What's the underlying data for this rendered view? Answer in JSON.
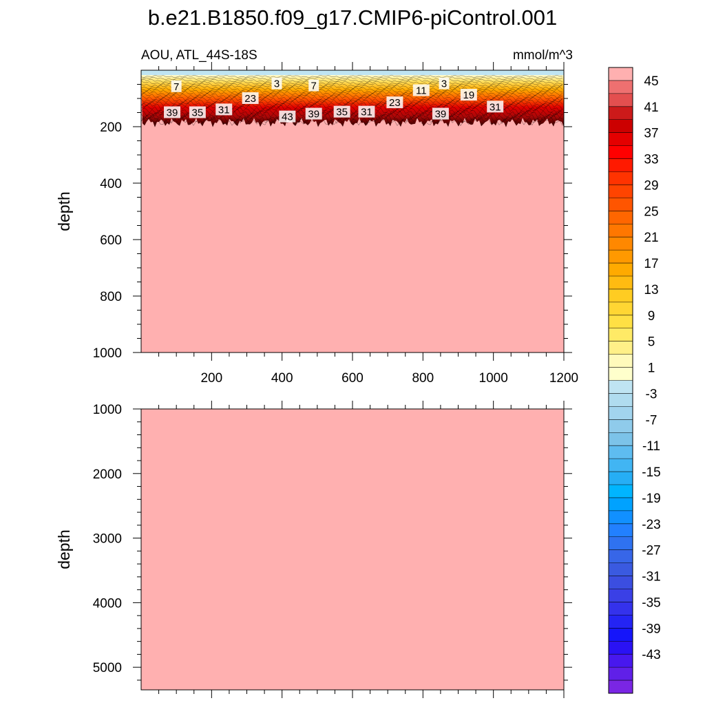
{
  "title": "b.e21.B1850.f09_g17.CMIP6-piControl.001",
  "chart_data": [
    {
      "type": "heatmap",
      "panel": "upper",
      "left_label": "AOU, ATL_44S-18S",
      "right_label": "mmol/m^3",
      "ylabel": "depth",
      "xlim": [
        0,
        1200
      ],
      "ylim": [
        1000,
        0
      ],
      "x_ticks": [
        "200",
        "400",
        "600",
        "800",
        "1000",
        "1200"
      ],
      "y_ticks": [
        "200",
        "400",
        "600",
        "800",
        "1000"
      ],
      "x_tick_values": [
        200,
        400,
        600,
        800,
        1000,
        1200
      ],
      "y_tick_values": [
        200,
        400,
        600,
        800,
        1000
      ],
      "fill_value": 45,
      "surface_layer": {
        "value": -3,
        "depth_bottom": 25
      },
      "gradient_band": {
        "depth_top": 25,
        "depth_bottom": 185
      },
      "contour_labels": [
        {
          "text": "7",
          "x": 100,
          "y": 58
        },
        {
          "text": "3",
          "x": 385,
          "y": 48
        },
        {
          "text": "7",
          "x": 490,
          "y": 55
        },
        {
          "text": "23",
          "x": 310,
          "y": 100
        },
        {
          "text": "39",
          "x": 88,
          "y": 150
        },
        {
          "text": "35",
          "x": 160,
          "y": 150
        },
        {
          "text": "31",
          "x": 235,
          "y": 140
        },
        {
          "text": "43",
          "x": 415,
          "y": 165
        },
        {
          "text": "39",
          "x": 490,
          "y": 155
        },
        {
          "text": "35",
          "x": 570,
          "y": 148
        },
        {
          "text": "31",
          "x": 640,
          "y": 148
        },
        {
          "text": "23",
          "x": 720,
          "y": 115
        },
        {
          "text": "11",
          "x": 795,
          "y": 72
        },
        {
          "text": "3",
          "x": 860,
          "y": 48
        },
        {
          "text": "19",
          "x": 930,
          "y": 88
        },
        {
          "text": "39",
          "x": 850,
          "y": 155
        },
        {
          "text": "31",
          "x": 1005,
          "y": 130
        }
      ]
    },
    {
      "type": "heatmap",
      "panel": "lower",
      "ylabel": "depth",
      "xlim": [
        0,
        1200
      ],
      "ylim": [
        5350,
        1000
      ],
      "y_ticks": [
        "1000",
        "2000",
        "3000",
        "4000",
        "5000"
      ],
      "y_tick_values": [
        1000,
        2000,
        3000,
        4000,
        5000
      ],
      "fill_value": 45
    }
  ],
  "colorbar": {
    "labels": [
      "45",
      "41",
      "37",
      "33",
      "29",
      "25",
      "21",
      "17",
      "13",
      "9",
      "5",
      "1",
      "-3",
      "-7",
      "-11",
      "-15",
      "-19",
      "-23",
      "-27",
      "-31",
      "-35",
      "-39",
      "-43"
    ],
    "colors": [
      "#ffb0b0",
      "#ee7070",
      "#e34f4f",
      "#cc1a1a",
      "#cc0000",
      "#e40000",
      "#ff0000",
      "#ff1a00",
      "#ff3300",
      "#ff4400",
      "#ff5500",
      "#ff6600",
      "#ff7700",
      "#ff8800",
      "#ff9900",
      "#ffaa00",
      "#ffbb11",
      "#ffcc22",
      "#ffd633",
      "#ffe044",
      "#ffea66",
      "#fff088",
      "#fffabb",
      "#ffffcc",
      "#bfe4f2",
      "#b0dcef",
      "#a2d4ee",
      "#8fcbeb",
      "#7cc3e9",
      "#5ebcf0",
      "#41b5f3",
      "#26aef5",
      "#00b5ff",
      "#00a2ff",
      "#1190ff",
      "#2280ff",
      "#2f72f0",
      "#3766e8",
      "#3a5ae0",
      "#3b4ee0",
      "#3a40e6",
      "#3432ec",
      "#2424f4",
      "#1515fa",
      "#2a12f4",
      "#4818ee",
      "#6020e8",
      "#7a26e4"
    ]
  }
}
